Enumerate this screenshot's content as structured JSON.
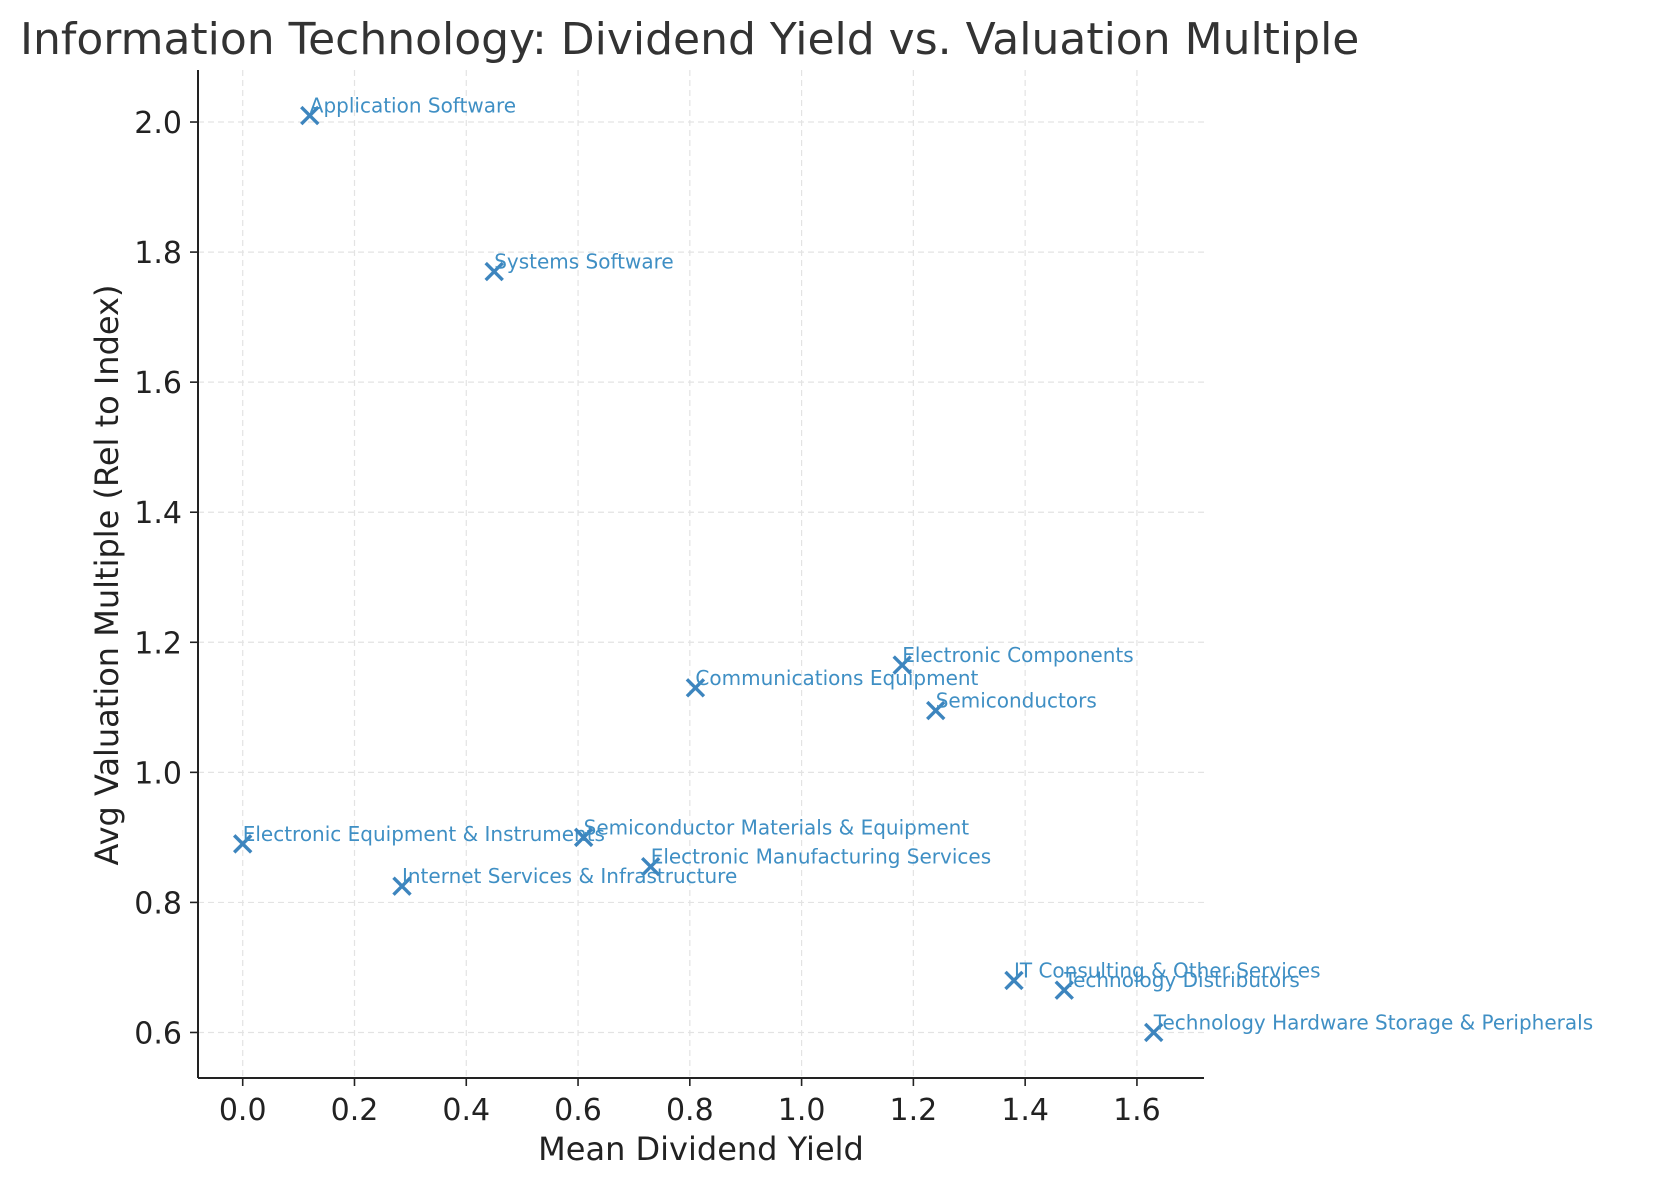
{
  "chart_data": {
    "type": "scatter",
    "title": "Information Technology: Dividend Yield vs. Valuation Multiple",
    "xlabel": "Mean Dividend Yield",
    "ylabel": "Avg Valuation Multiple (Rel to Index)",
    "xlim": [
      -0.08,
      1.72
    ],
    "ylim": [
      0.53,
      2.08
    ],
    "xticks": [
      "0.0",
      "0.2",
      "0.4",
      "0.6",
      "0.8",
      "1.0",
      "1.2",
      "1.4",
      "1.6"
    ],
    "yticks": [
      "0.6",
      "0.8",
      "1.0",
      "1.2",
      "1.4",
      "1.6",
      "1.8",
      "2.0"
    ],
    "grid": true,
    "marker": "x",
    "color": "#3d85be",
    "label_color": "#3f8fc4",
    "points": [
      {
        "label": "Application Software",
        "x": 0.12,
        "y": 2.01
      },
      {
        "label": "Systems Software",
        "x": 0.45,
        "y": 1.77
      },
      {
        "label": "Electronic Components",
        "x": 1.18,
        "y": 1.165
      },
      {
        "label": "Communications Equipment",
        "x": 0.81,
        "y": 1.13
      },
      {
        "label": "Semiconductors",
        "x": 1.24,
        "y": 1.095
      },
      {
        "label": "Electronic Equipment & Instruments",
        "x": 0.0,
        "y": 0.89
      },
      {
        "label": "Semiconductor Materials & Equipment",
        "x": 0.61,
        "y": 0.9
      },
      {
        "label": "Electronic Manufacturing Services",
        "x": 0.73,
        "y": 0.855
      },
      {
        "label": "Internet Services & Infrastructure",
        "x": 0.285,
        "y": 0.825
      },
      {
        "label": "IT Consulting & Other Services",
        "x": 1.38,
        "y": 0.68
      },
      {
        "label": "Technology Distributors",
        "x": 1.47,
        "y": 0.665
      },
      {
        "label": "Technology Hardware Storage & Peripherals",
        "x": 1.63,
        "y": 0.6
      }
    ]
  }
}
